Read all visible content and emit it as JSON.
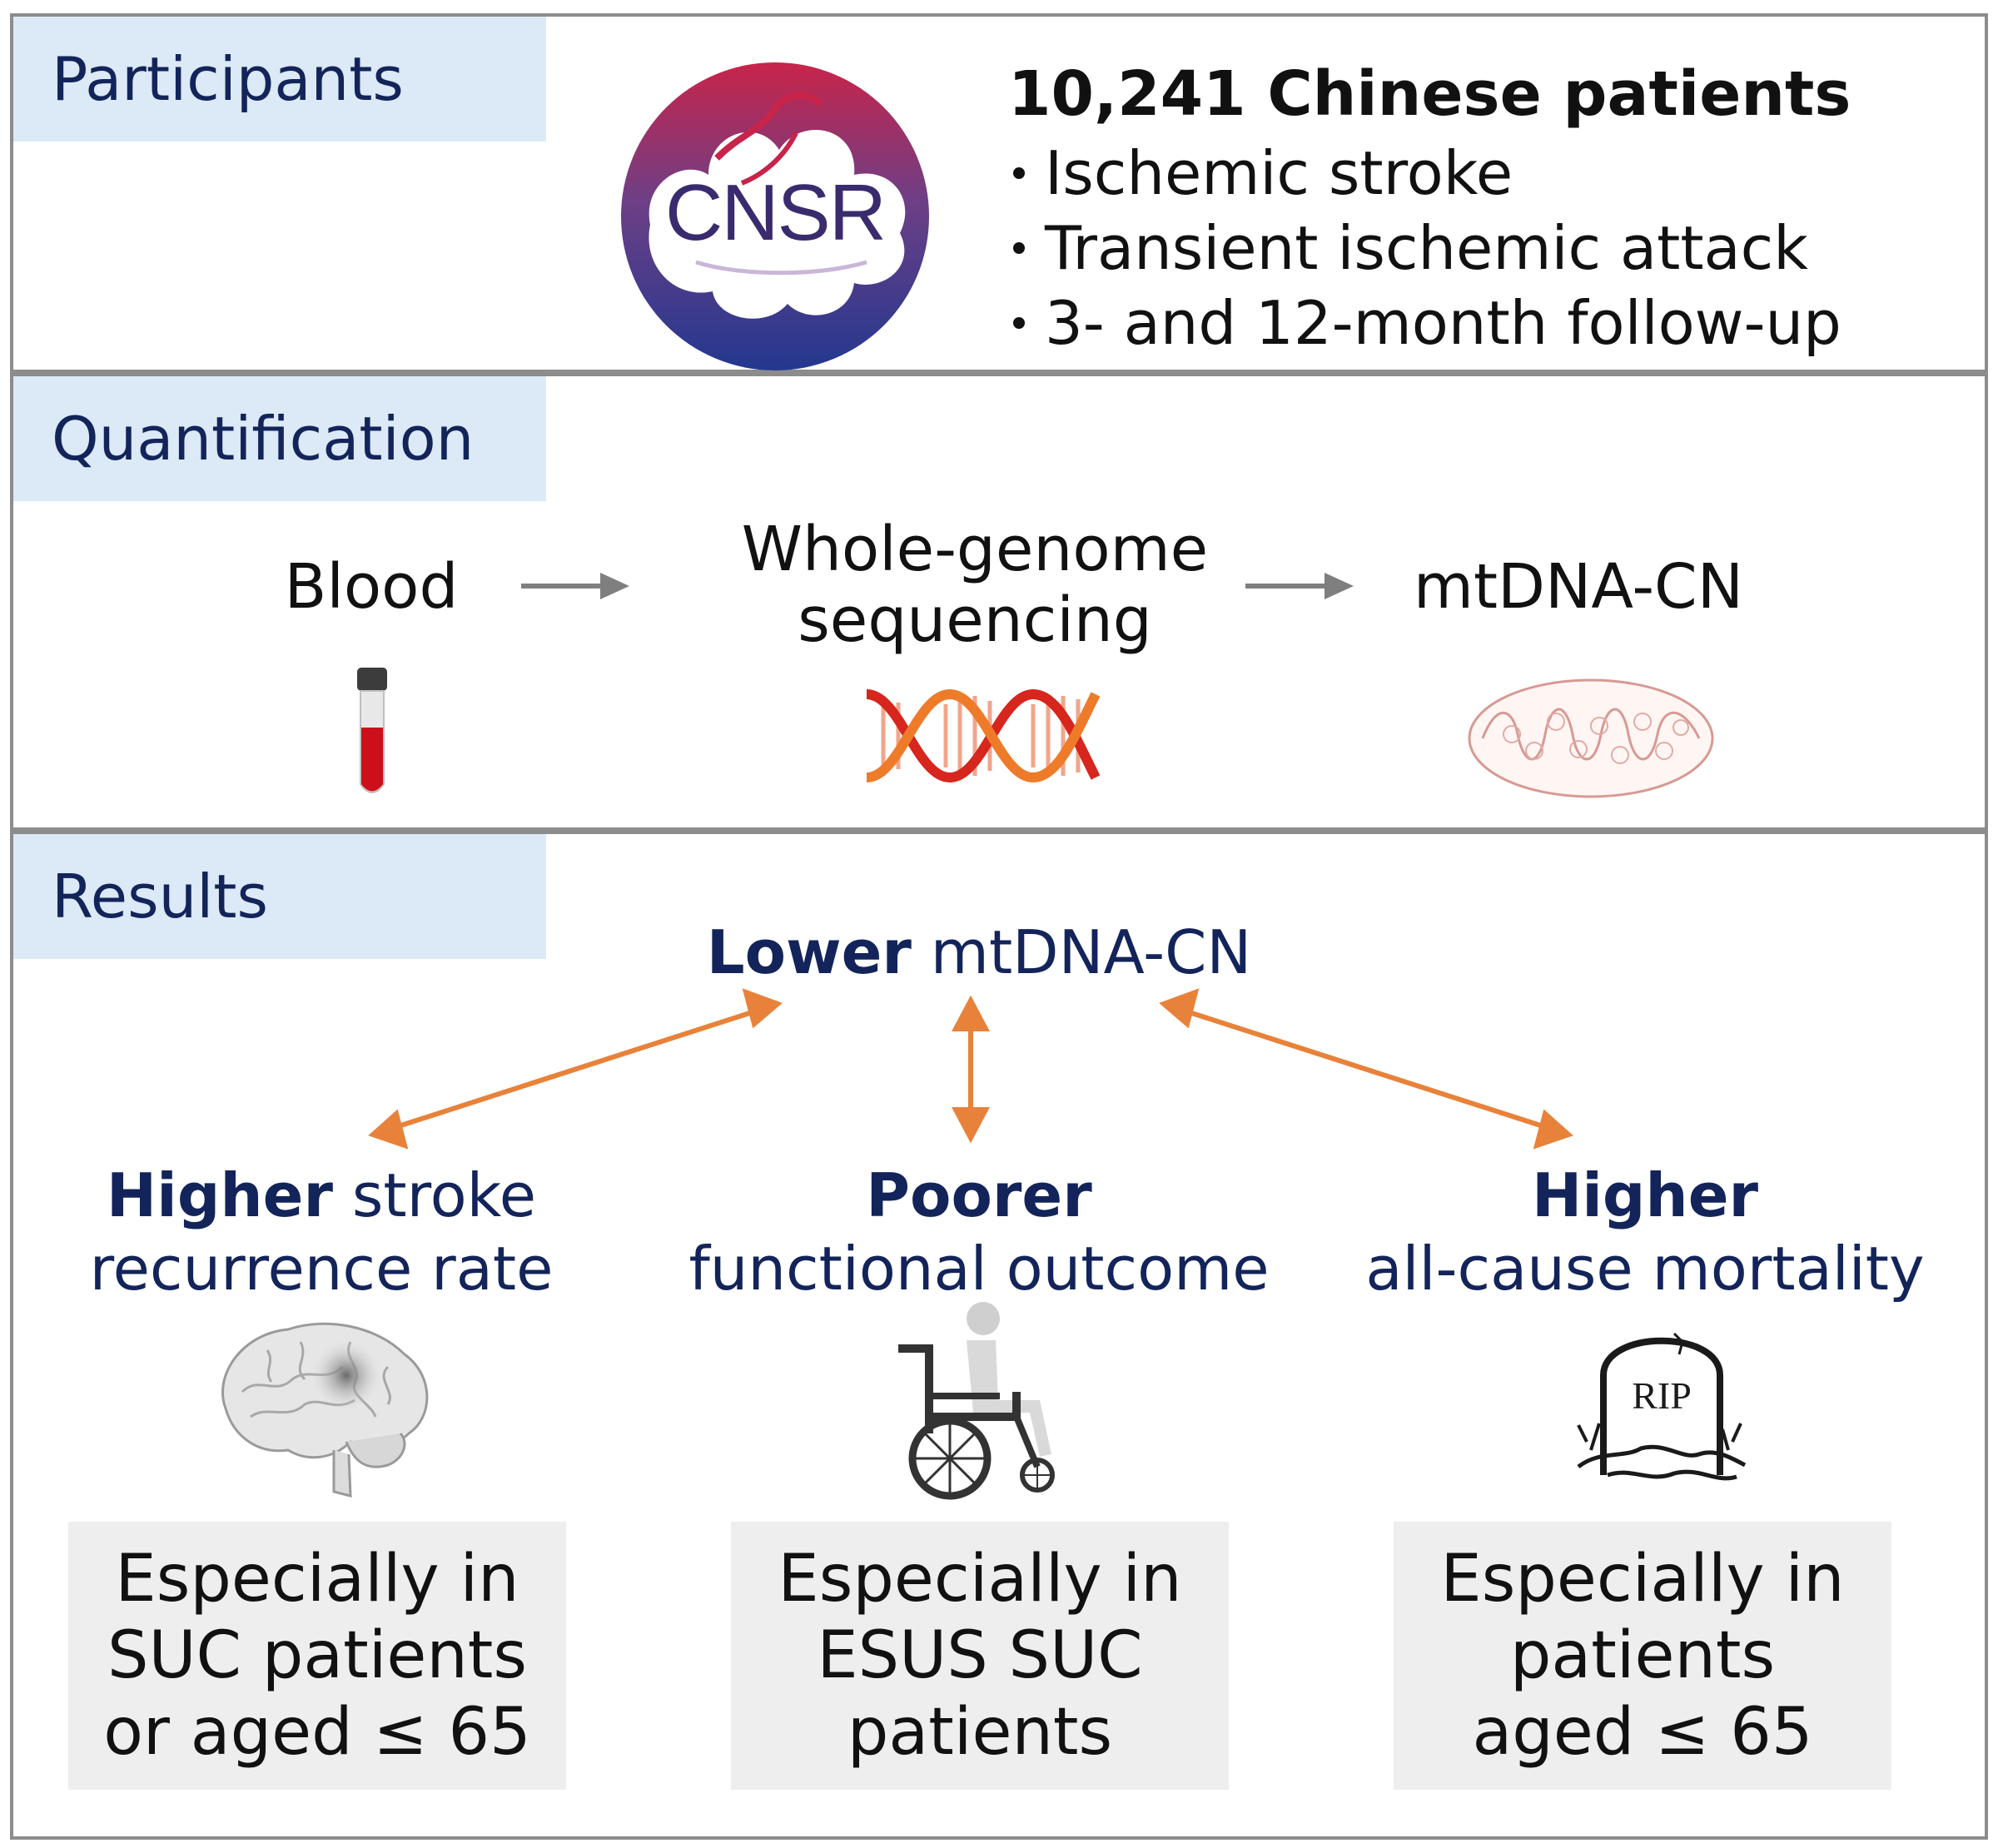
{
  "participants": {
    "tab_label": "Participants",
    "logo_text": "CNSR",
    "headline": "10,241 Chinese patients",
    "bullets": [
      "Ischemic stroke",
      "Transient ischemic attack",
      "3- and 12-month follow-up"
    ]
  },
  "quantification": {
    "tab_label": "Quantification",
    "step1": "Blood",
    "step2_line1": "Whole-genome",
    "step2_line2": "sequencing",
    "step3": "mtDNA-CN"
  },
  "results": {
    "tab_label": "Results",
    "center_bold": "Lower",
    "center_rest": " mtDNA-CN",
    "outcomes": [
      {
        "bold": "Higher",
        "rest": " stroke",
        "line2": "recurrence rate",
        "icon": "brain-icon",
        "note": [
          "Especially in",
          "SUC patients",
          "or aged ≤ 65"
        ]
      },
      {
        "bold": "Poorer",
        "rest": "",
        "line2": "functional outcome",
        "icon": "wheelchair-icon",
        "note": [
          "Especially in",
          "ESUS SUC",
          "patients"
        ]
      },
      {
        "bold": "Higher",
        "rest": "",
        "line2": "all-cause mortality",
        "icon": "tombstone-icon",
        "tomb_text": "RIP",
        "note": [
          "Especially in",
          "patients",
          "aged ≤ 65"
        ]
      }
    ]
  },
  "colors": {
    "navy": "#13245a",
    "tab_bg": "#dce9f6",
    "arrow_orange": "#e8823a",
    "note_bg": "#eeeeee",
    "border": "#8c8c8c"
  }
}
